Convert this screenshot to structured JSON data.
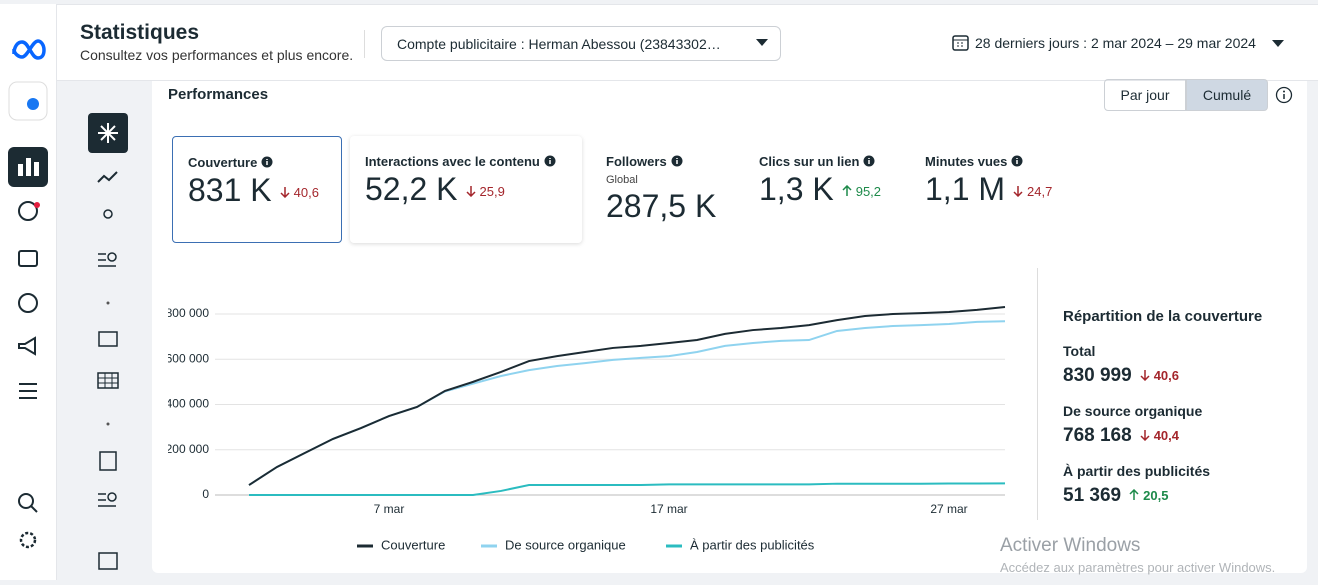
{
  "header": {
    "title": "Statistiques",
    "subtitle": "Consultez vos performances et plus encore.",
    "account": "Compte publicitaire : Herman Abessou (23843302…",
    "date_range": "28 derniers jours : 2 mar 2024 – 29 mar 2024"
  },
  "section": {
    "title": "Performances",
    "toggle": [
      "Par jour",
      "Cumulé"
    ]
  },
  "metrics": [
    {
      "label": "Couverture",
      "value": "831 K",
      "change": "40,6",
      "trend": "down"
    },
    {
      "label": "Interactions avec le contenu",
      "value": "52,2 K",
      "change": "25,9",
      "trend": "down"
    },
    {
      "label": "Followers",
      "sublabel": "Global",
      "value": "287,5 K"
    },
    {
      "label": "Clics sur un lien",
      "value": "1,3 K",
      "change": "95,2",
      "trend": "up"
    },
    {
      "label": "Minutes vues",
      "value": "1,1 M",
      "change": "24,7",
      "trend": "down"
    }
  ],
  "chart_data": {
    "type": "line",
    "categories": [
      null,
      null,
      null,
      null,
      null,
      "7 mar",
      null,
      null,
      null,
      null,
      null,
      null,
      null,
      null,
      null,
      "17 mar",
      null,
      null,
      null,
      null,
      null,
      null,
      null,
      null,
      null,
      "27 mar",
      null,
      null
    ],
    "series": [
      {
        "name": "Couverture",
        "color": "#1c2b33",
        "values": [
          44000,
          124000,
          186000,
          248000,
          296000,
          349000,
          389000,
          460000,
          500000,
          544000,
          592000,
          614000,
          632000,
          650000,
          659000,
          672000,
          685000,
          712000,
          729000,
          738000,
          751000,
          773000,
          791000,
          800000,
          804000,
          809000,
          818000,
          830999
        ]
      },
      {
        "name": "De source organique",
        "color": "#8fd3ef",
        "values": [
          44000,
          124000,
          186000,
          248000,
          296000,
          349000,
          389000,
          458000,
          492000,
          526000,
          552000,
          570000,
          583000,
          597000,
          606000,
          614000,
          632000,
          659000,
          672000,
          681000,
          685000,
          725000,
          738000,
          747000,
          751000,
          756000,
          765000,
          768168
        ]
      },
      {
        "name": "À partir des publicités",
        "color": "#2bbcc0",
        "values": [
          0,
          0,
          0,
          0,
          0,
          0,
          0,
          0,
          0,
          18000,
          44000,
          44000,
          44000,
          44000,
          44000,
          47000,
          47000,
          47000,
          47000,
          47000,
          47000,
          50000,
          50000,
          50000,
          50000,
          51000,
          51000,
          51369
        ]
      }
    ],
    "ylim": [
      0,
      1000000
    ],
    "yticks": [
      0,
      {
        "value": 200000,
        "label": "200 000"
      },
      {
        "value": 400000,
        "label": "400 000"
      },
      {
        "value": 600000,
        "label": "600 000"
      },
      {
        "value": 800000,
        "label": "800 000"
      }
    ],
    "grid": true
  },
  "breakdown": {
    "title": "Répartition de la couverture",
    "items": [
      {
        "label": "Total",
        "value": "830 999",
        "change": "40,6",
        "trend": "down"
      },
      {
        "label": "De source organique",
        "value": "768 168",
        "change": "40,4",
        "trend": "down"
      },
      {
        "label": "À partir des publicités",
        "value": "51 369",
        "change": "20,5",
        "trend": "up"
      }
    ]
  },
  "watermark": {
    "title": "Activer Windows",
    "text": "Accédez aux paramètres pour activer Windows."
  }
}
